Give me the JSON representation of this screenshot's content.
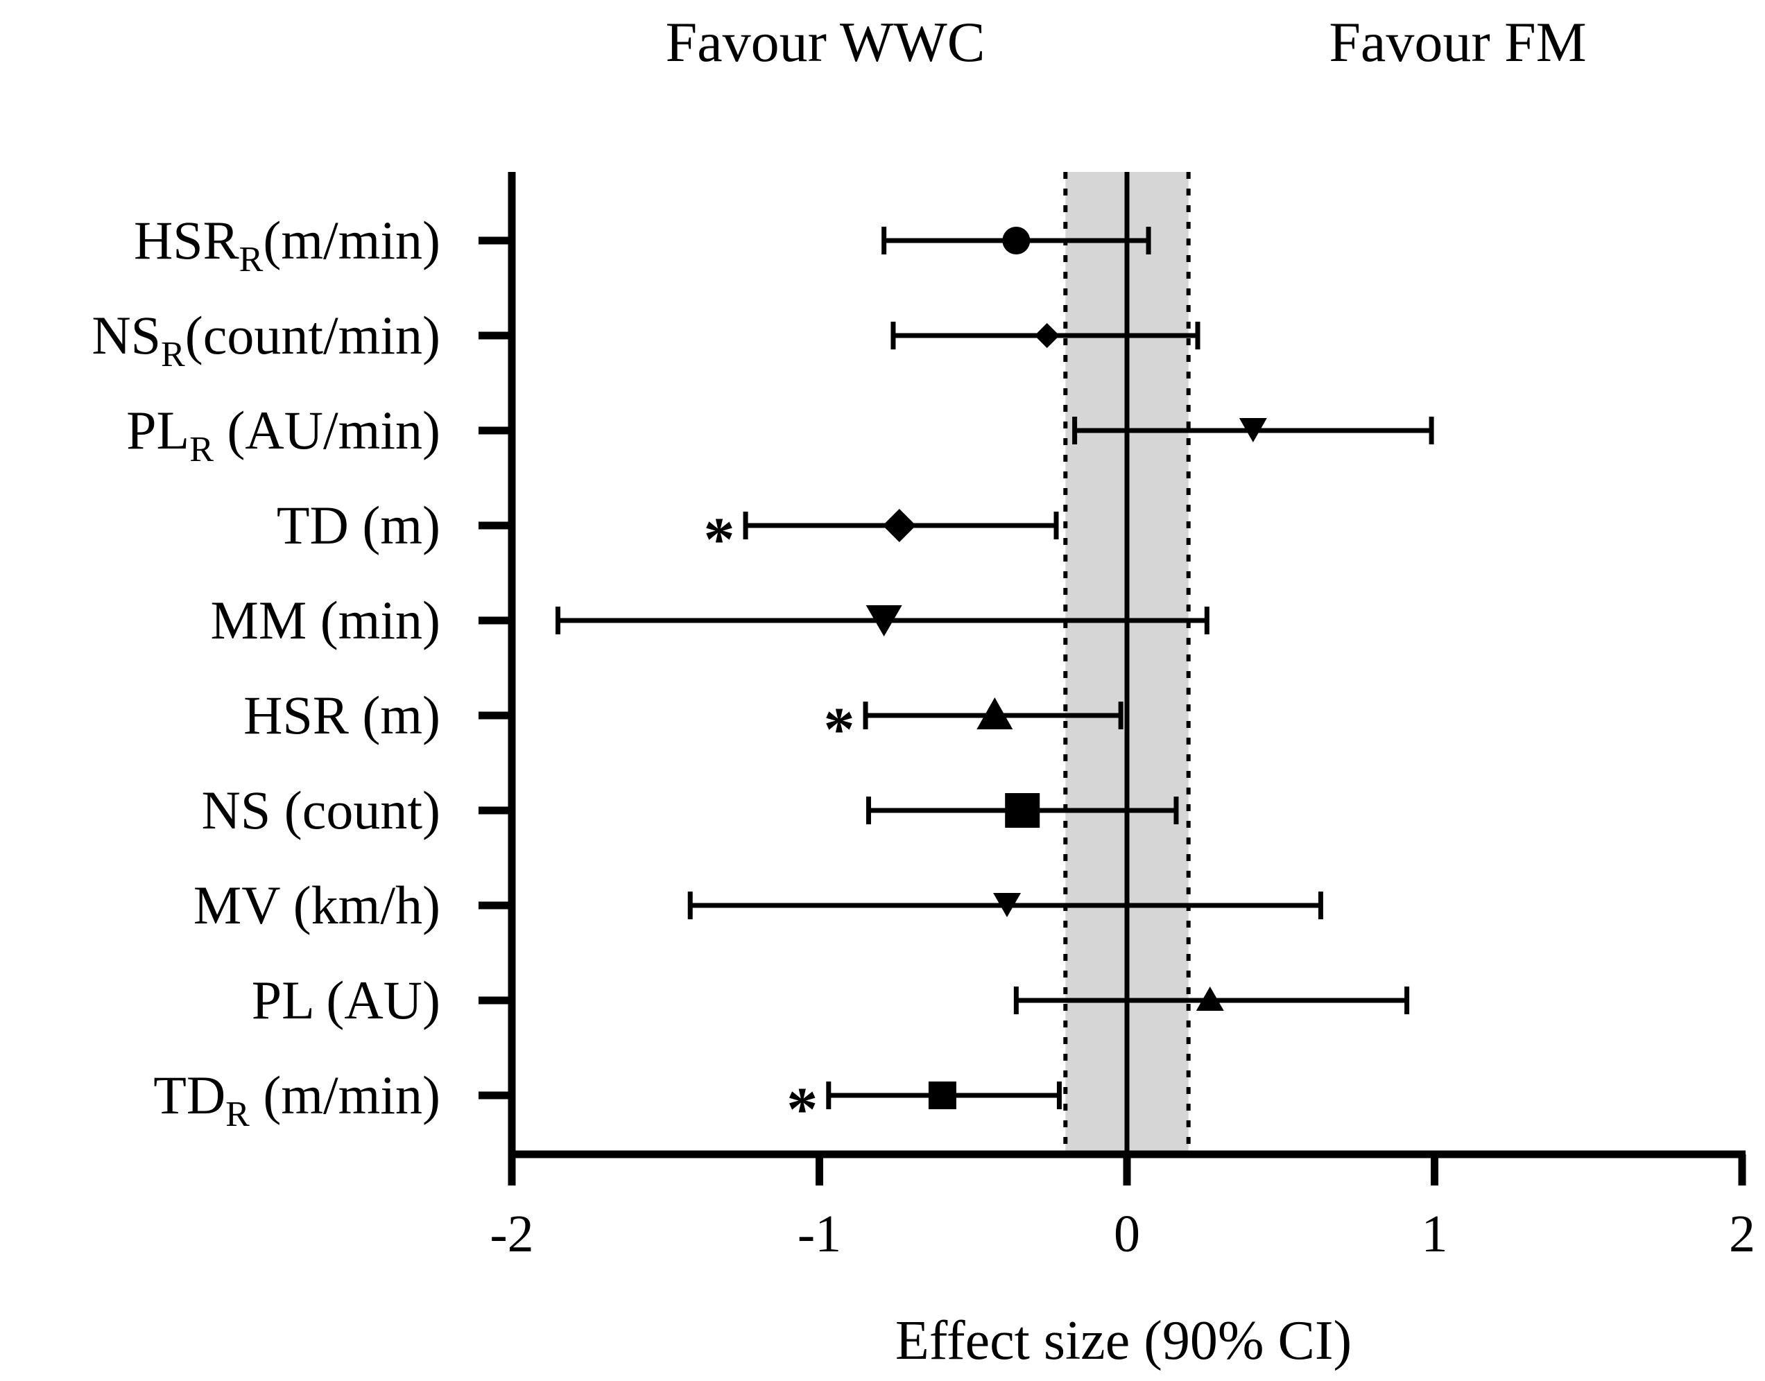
{
  "chart_data": {
    "type": "forest",
    "title": "",
    "header_left": "Favour WWC",
    "header_right": "Favour FM",
    "xlabel": "Effect size (90% CI)",
    "xlim": [
      -2,
      2
    ],
    "xticks": [
      -2,
      -1,
      0,
      1,
      2
    ],
    "xtick_labels": [
      "-2",
      "-1",
      "0",
      "1",
      "2"
    ],
    "trivial_band": [
      -0.2,
      0.2
    ],
    "reference_line": 0,
    "grid": false,
    "rows": [
      {
        "base": "HSR",
        "sub": "R",
        "suffix": "(m/min)",
        "estimate": -0.36,
        "lower": -0.79,
        "upper": 0.07,
        "marker": "circle",
        "significant": false
      },
      {
        "base": "NS",
        "sub": "R",
        "suffix": "(count/min)",
        "estimate": -0.26,
        "lower": -0.76,
        "upper": 0.23,
        "marker": "diamond-small",
        "significant": false
      },
      {
        "base": "PL",
        "sub": "R",
        "suffix": " (AU/min)",
        "estimate": 0.41,
        "lower": -0.17,
        "upper": 0.99,
        "marker": "triangle-down",
        "significant": false
      },
      {
        "base": "TD (m)",
        "sub": "",
        "suffix": "",
        "estimate": -0.74,
        "lower": -1.24,
        "upper": -0.23,
        "marker": "diamond",
        "significant": true
      },
      {
        "base": "MM (min)",
        "sub": "",
        "suffix": "",
        "estimate": -0.79,
        "lower": -1.85,
        "upper": 0.26,
        "marker": "triangle-down-large",
        "significant": false
      },
      {
        "base": "HSR (m)",
        "sub": "",
        "suffix": "",
        "estimate": -0.43,
        "lower": -0.85,
        "upper": -0.02,
        "marker": "triangle-up-large",
        "significant": true
      },
      {
        "base": "NS (count)",
        "sub": "",
        "suffix": "",
        "estimate": -0.34,
        "lower": -0.84,
        "upper": 0.16,
        "marker": "square-large",
        "significant": false
      },
      {
        "base": "MV (km/h)",
        "sub": "",
        "suffix": "",
        "estimate": -0.39,
        "lower": -1.42,
        "upper": 0.63,
        "marker": "triangle-down",
        "significant": false
      },
      {
        "base": "PL (AU)",
        "sub": "",
        "suffix": "",
        "estimate": 0.27,
        "lower": -0.36,
        "upper": 0.91,
        "marker": "triangle-up",
        "significant": false
      },
      {
        "base": "TD",
        "sub": "R",
        "suffix": " (m/min)",
        "estimate": -0.6,
        "lower": -0.97,
        "upper": -0.22,
        "marker": "square",
        "significant": true
      }
    ],
    "significance_marker": "*"
  }
}
